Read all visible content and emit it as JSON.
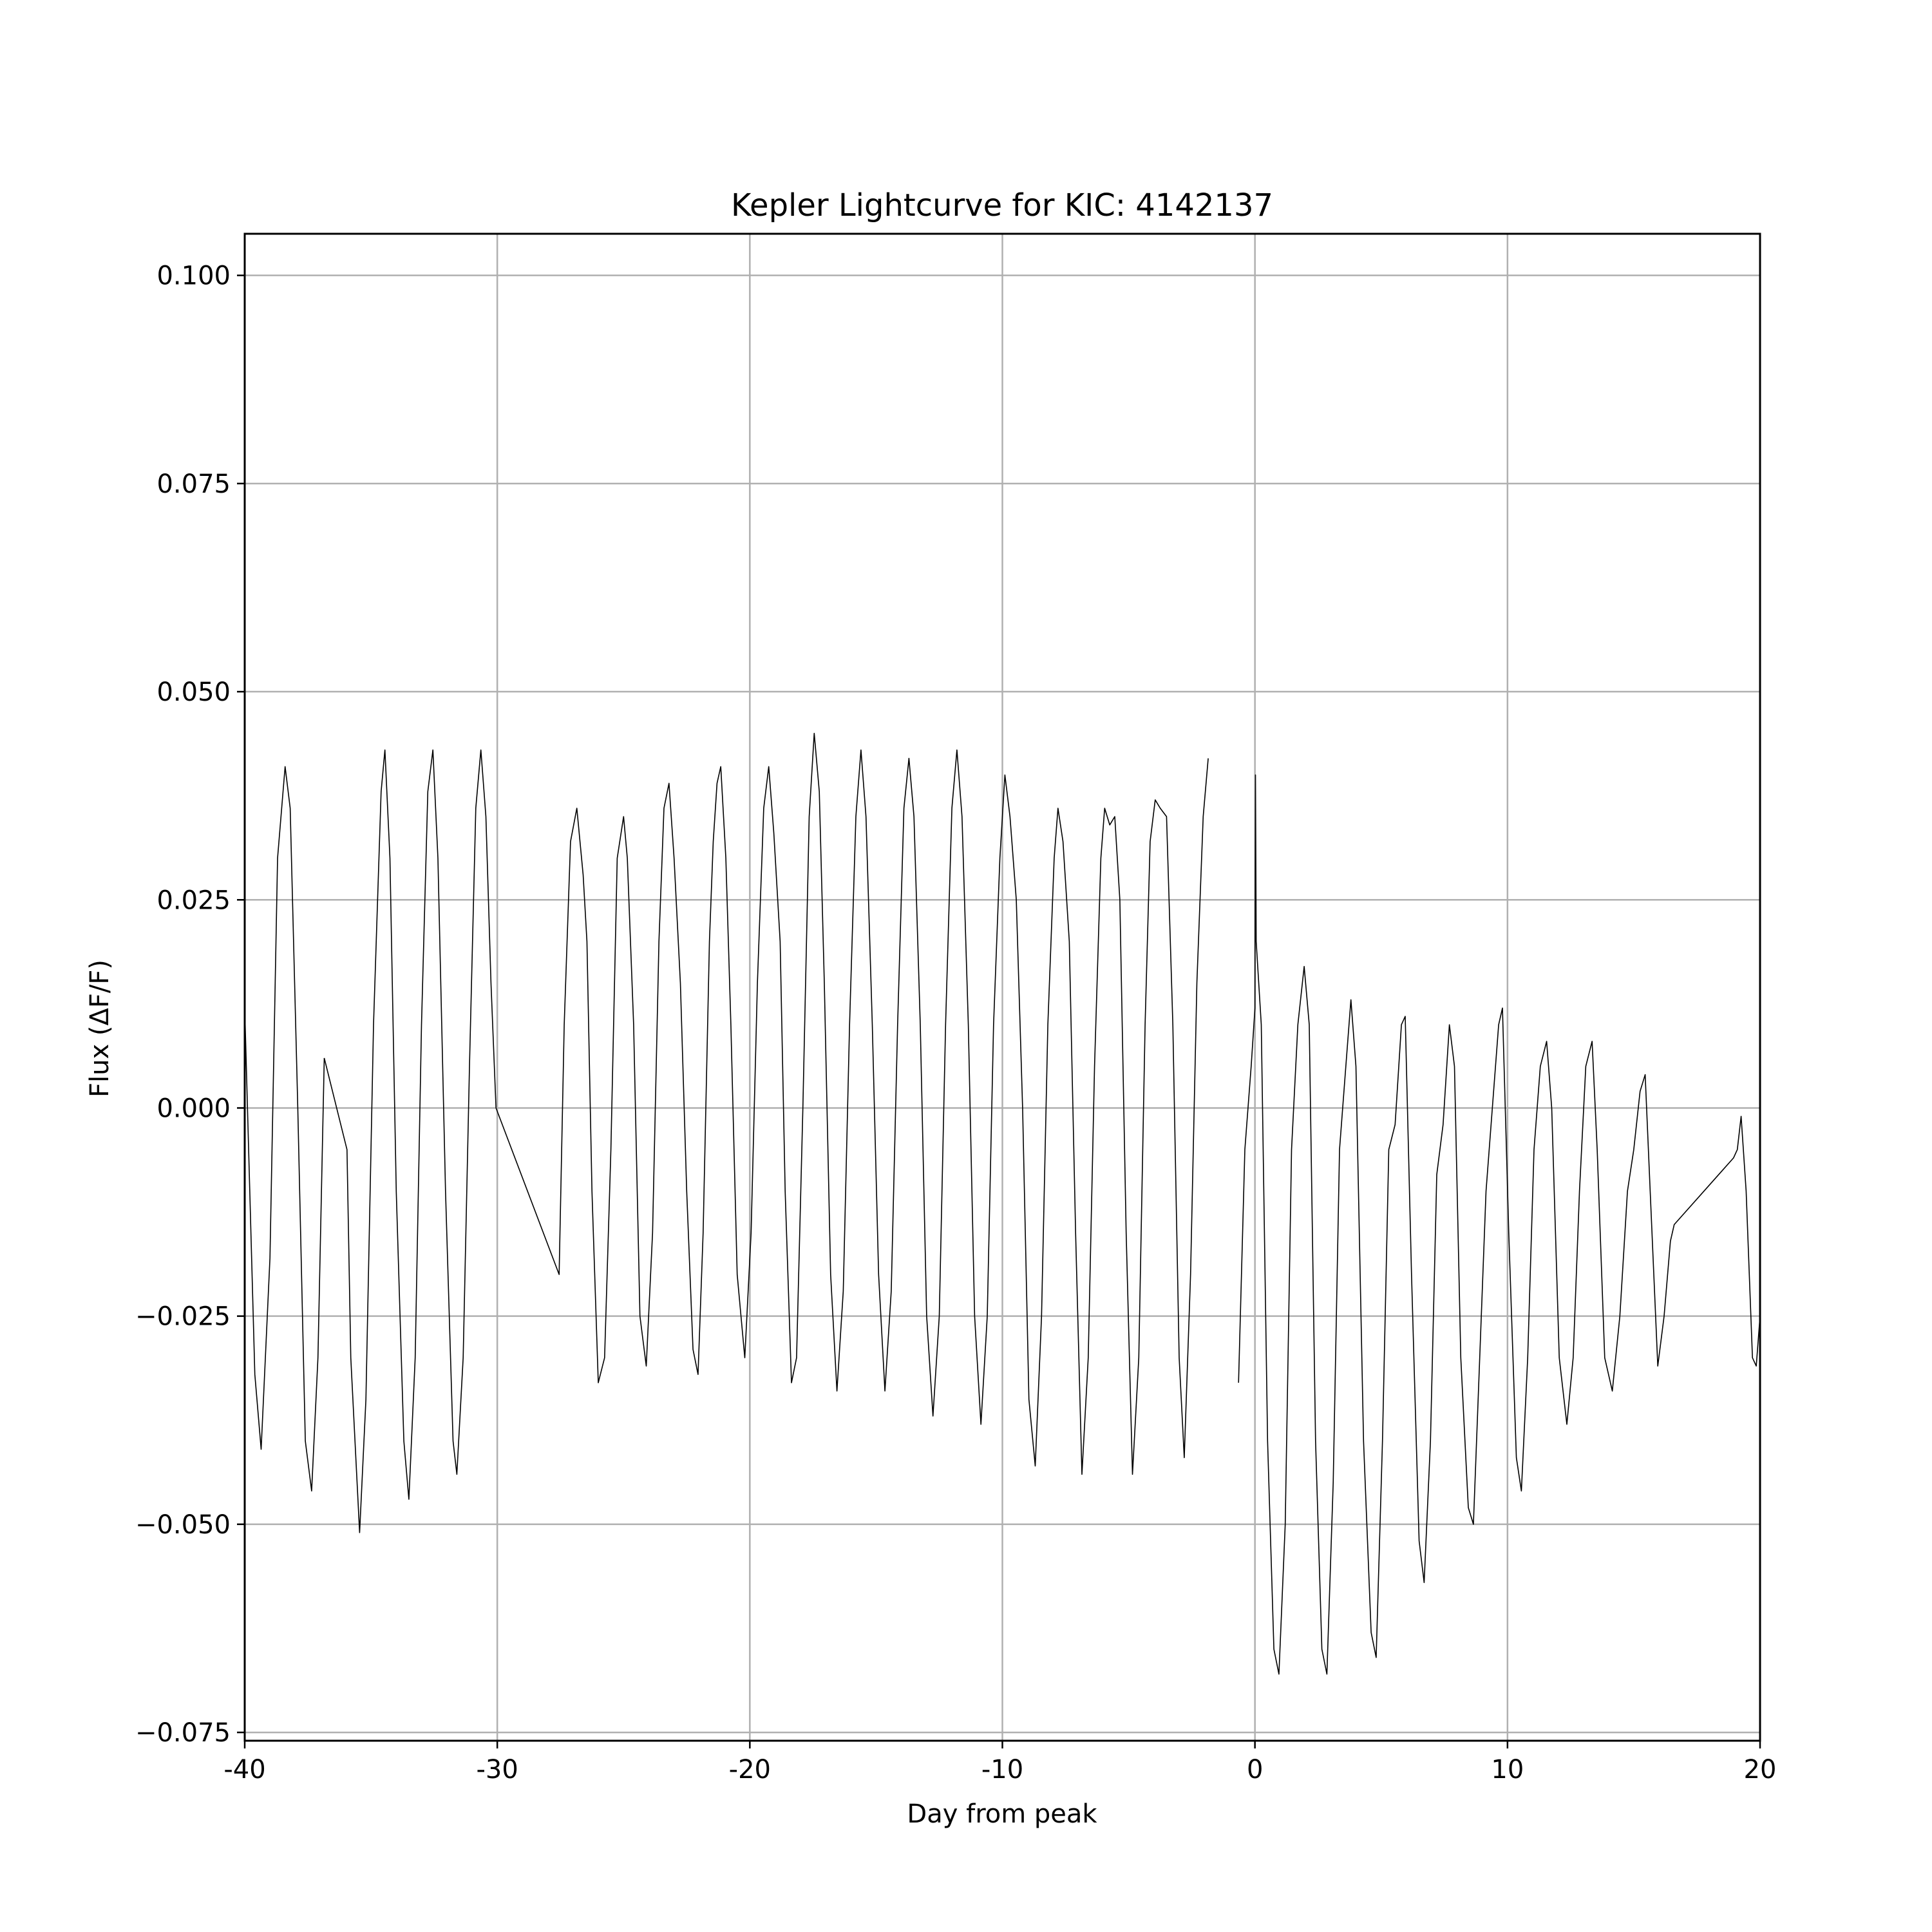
{
  "chart_data": {
    "type": "line",
    "title": "Kepler Lightcurve for KIC: 4142137",
    "xlabel": "Day from peak",
    "ylabel": "Flux (ΔF/F)",
    "xlim": [
      -40,
      20
    ],
    "ylim": [
      -0.076,
      0.105
    ],
    "grid": true,
    "x_ticks": [
      -40,
      -30,
      -20,
      -10,
      0,
      10,
      20
    ],
    "x_tick_labels": [
      "-40",
      "-30",
      "-20",
      "-10",
      "0",
      "10",
      "20"
    ],
    "y_ticks": [
      -0.075,
      -0.05,
      -0.025,
      0.0,
      0.025,
      0.05,
      0.075,
      0.1
    ],
    "y_tick_labels": [
      "−0.075",
      "−0.050",
      "−0.025",
      "0.000",
      "0.025",
      "0.050",
      "0.075",
      "0.100"
    ],
    "line_color": "#000000",
    "grid_color": "#b0b0b0",
    "series": [
      {
        "segments": [
          [
            [
              -40.0,
              0.012
            ],
            [
              -39.6,
              -0.032
            ],
            [
              -39.35,
              -0.041
            ],
            [
              -39.0,
              -0.018
            ],
            [
              -38.7,
              0.03
            ],
            [
              -38.4,
              0.041
            ],
            [
              -38.2,
              0.036
            ],
            [
              -37.9,
              0.0
            ],
            [
              -37.6,
              -0.04
            ],
            [
              -37.35,
              -0.046
            ],
            [
              -37.1,
              -0.03
            ],
            [
              -36.85,
              0.006
            ]
          ],
          [
            [
              -36.85,
              0.006
            ],
            [
              -35.95,
              -0.005
            ],
            [
              -35.8,
              -0.03
            ],
            [
              -35.45,
              -0.051
            ],
            [
              -35.2,
              -0.035
            ],
            [
              -34.9,
              0.01
            ],
            [
              -34.6,
              0.038
            ],
            [
              -34.45,
              0.043
            ],
            [
              -34.25,
              0.03
            ],
            [
              -34.0,
              -0.01
            ],
            [
              -33.7,
              -0.04
            ],
            [
              -33.5,
              -0.047
            ],
            [
              -33.25,
              -0.03
            ],
            [
              -33.0,
              0.01
            ],
            [
              -32.75,
              0.038
            ],
            [
              -32.55,
              0.043
            ],
            [
              -32.35,
              0.03
            ],
            [
              -32.05,
              -0.01
            ],
            [
              -31.75,
              -0.04
            ],
            [
              -31.6,
              -0.044
            ],
            [
              -31.35,
              -0.03
            ],
            [
              -31.1,
              0.005
            ],
            [
              -30.85,
              0.036
            ],
            [
              -30.65,
              0.043
            ],
            [
              -30.45,
              0.035
            ],
            [
              -30.25,
              0.015
            ],
            [
              -30.05,
              0.0
            ]
          ],
          [
            [
              -30.05,
              0.0
            ],
            [
              -27.55,
              -0.02
            ],
            [
              -27.35,
              0.01
            ],
            [
              -27.1,
              0.032
            ],
            [
              -26.85,
              0.036
            ],
            [
              -26.6,
              0.028
            ],
            [
              -26.45,
              0.02
            ],
            [
              -26.25,
              -0.01
            ],
            [
              -26.0,
              -0.033
            ],
            [
              -25.75,
              -0.03
            ],
            [
              -25.5,
              -0.005
            ],
            [
              -25.25,
              0.03
            ],
            [
              -25.0,
              0.035
            ],
            [
              -24.85,
              0.03
            ],
            [
              -24.6,
              0.01
            ],
            [
              -24.35,
              -0.025
            ],
            [
              -24.1,
              -0.031
            ],
            [
              -23.85,
              -0.015
            ],
            [
              -23.6,
              0.02
            ],
            [
              -23.4,
              0.036
            ],
            [
              -23.2,
              0.039
            ],
            [
              -23.0,
              0.03
            ],
            [
              -22.75,
              0.015
            ],
            [
              -22.5,
              -0.01
            ],
            [
              -22.25,
              -0.029
            ],
            [
              -22.05,
              -0.032
            ],
            [
              -21.85,
              -0.015
            ],
            [
              -21.6,
              0.02
            ],
            [
              -21.45,
              0.032
            ],
            [
              -21.3,
              0.039
            ],
            [
              -21.15,
              0.041
            ],
            [
              -20.95,
              0.03
            ],
            [
              -20.75,
              0.01
            ],
            [
              -20.5,
              -0.02
            ],
            [
              -20.2,
              -0.03
            ],
            [
              -19.95,
              -0.015
            ],
            [
              -19.7,
              0.015
            ],
            [
              -19.45,
              0.036
            ],
            [
              -19.25,
              0.041
            ],
            [
              -19.05,
              0.033
            ],
            [
              -18.8,
              0.02
            ],
            [
              -18.6,
              -0.01
            ],
            [
              -18.35,
              -0.033
            ],
            [
              -18.15,
              -0.03
            ],
            [
              -17.9,
              0.0
            ],
            [
              -17.65,
              0.035
            ],
            [
              -17.45,
              0.045
            ],
            [
              -17.25,
              0.038
            ],
            [
              -17.05,
              0.015
            ],
            [
              -16.8,
              -0.02
            ],
            [
              -16.55,
              -0.034
            ],
            [
              -16.3,
              -0.022
            ],
            [
              -16.05,
              0.01
            ],
            [
              -15.8,
              0.035
            ],
            [
              -15.6,
              0.043
            ],
            [
              -15.4,
              0.035
            ],
            [
              -15.15,
              0.01
            ],
            [
              -14.9,
              -0.02
            ],
            [
              -14.65,
              -0.034
            ],
            [
              -14.4,
              -0.022
            ],
            [
              -14.15,
              0.01
            ],
            [
              -13.9,
              0.036
            ],
            [
              -13.7,
              0.042
            ],
            [
              -13.5,
              0.035
            ],
            [
              -13.25,
              0.01
            ],
            [
              -13.0,
              -0.025
            ],
            [
              -12.75,
              -0.037
            ],
            [
              -12.5,
              -0.025
            ],
            [
              -12.25,
              0.01
            ],
            [
              -12.0,
              0.036
            ],
            [
              -11.8,
              0.043
            ],
            [
              -11.6,
              0.035
            ],
            [
              -11.35,
              0.01
            ],
            [
              -11.1,
              -0.025
            ],
            [
              -10.85,
              -0.038
            ],
            [
              -10.6,
              -0.025
            ],
            [
              -10.35,
              0.01
            ],
            [
              -10.1,
              0.03
            ],
            [
              -9.9,
              0.04
            ],
            [
              -9.7,
              0.035
            ],
            [
              -9.45,
              0.025
            ],
            [
              -9.2,
              0.0
            ],
            [
              -8.95,
              -0.035
            ],
            [
              -8.7,
              -0.043
            ],
            [
              -8.45,
              -0.025
            ],
            [
              -8.2,
              0.01
            ],
            [
              -7.95,
              0.03
            ],
            [
              -7.8,
              0.036
            ],
            [
              -7.6,
              0.032
            ],
            [
              -7.35,
              0.02
            ],
            [
              -7.1,
              -0.015
            ],
            [
              -6.85,
              -0.044
            ],
            [
              -6.6,
              -0.03
            ],
            [
              -6.35,
              0.005
            ],
            [
              -6.1,
              0.03
            ],
            [
              -5.95,
              0.036
            ],
            [
              -5.75,
              0.034
            ],
            [
              -5.55,
              0.035
            ],
            [
              -5.35,
              0.025
            ],
            [
              -5.1,
              -0.015
            ],
            [
              -4.85,
              -0.044
            ],
            [
              -4.6,
              -0.03
            ],
            [
              -4.35,
              0.01
            ],
            [
              -4.15,
              0.032
            ],
            [
              -3.95,
              0.037
            ],
            [
              -3.75,
              0.036
            ],
            [
              -3.5,
              0.035
            ],
            [
              -3.25,
              0.01
            ],
            [
              -3.0,
              -0.03
            ],
            [
              -2.8,
              -0.042
            ],
            [
              -2.55,
              -0.02
            ],
            [
              -2.3,
              0.015
            ],
            [
              -2.05,
              0.035
            ],
            [
              -1.85,
              0.042
            ]
          ],
          [
            [
              -0.65,
              -0.033
            ],
            [
              -0.4,
              -0.005
            ],
            [
              -0.15,
              0.005
            ],
            [
              0.0,
              0.012
            ],
            [
              0.02,
              0.04
            ],
            [
              0.05,
              0.02
            ],
            [
              0.25,
              0.01
            ],
            [
              0.5,
              -0.04
            ],
            [
              0.75,
              -0.065
            ],
            [
              0.95,
              -0.068
            ],
            [
              1.2,
              -0.05
            ],
            [
              1.45,
              -0.005
            ],
            [
              1.7,
              0.01
            ],
            [
              1.95,
              0.017
            ],
            [
              2.15,
              0.01
            ],
            [
              2.4,
              -0.04
            ],
            [
              2.65,
              -0.065
            ],
            [
              2.85,
              -0.068
            ],
            [
              3.1,
              -0.045
            ],
            [
              3.35,
              -0.005
            ],
            [
              3.6,
              0.005
            ],
            [
              3.8,
              0.013
            ],
            [
              4.0,
              0.005
            ],
            [
              4.3,
              -0.04
            ],
            [
              4.6,
              -0.063
            ],
            [
              4.8,
              -0.066
            ],
            [
              5.05,
              -0.04
            ],
            [
              5.3,
              -0.005
            ],
            [
              5.55,
              -0.002
            ],
            [
              5.8,
              0.01
            ],
            [
              5.95,
              0.011
            ],
            [
              6.2,
              -0.02
            ],
            [
              6.5,
              -0.052
            ],
            [
              6.7,
              -0.057
            ],
            [
              6.95,
              -0.04
            ],
            [
              7.2,
              -0.008
            ],
            [
              7.45,
              -0.002
            ],
            [
              7.7,
              0.01
            ],
            [
              7.9,
              0.005
            ],
            [
              8.15,
              -0.03
            ],
            [
              8.45,
              -0.048
            ],
            [
              8.65,
              -0.05
            ],
            [
              8.9,
              -0.03
            ],
            [
              9.15,
              -0.01
            ],
            [
              9.4,
              0.0
            ],
            [
              9.65,
              0.01
            ],
            [
              9.8,
              0.012
            ],
            [
              10.05,
              -0.015
            ],
            [
              10.35,
              -0.042
            ],
            [
              10.55,
              -0.046
            ],
            [
              10.8,
              -0.03
            ],
            [
              11.05,
              -0.005
            ],
            [
              11.3,
              0.005
            ],
            [
              11.55,
              0.008
            ],
            [
              11.75,
              0.0
            ],
            [
              12.05,
              -0.03
            ],
            [
              12.35,
              -0.038
            ],
            [
              12.6,
              -0.03
            ],
            [
              12.85,
              -0.01
            ],
            [
              13.1,
              0.005
            ],
            [
              13.35,
              0.008
            ],
            [
              13.55,
              -0.005
            ],
            [
              13.85,
              -0.03
            ],
            [
              14.15,
              -0.034
            ],
            [
              14.45,
              -0.025
            ],
            [
              14.75,
              -0.01
            ],
            [
              15.0,
              -0.005
            ],
            [
              15.25,
              0.002
            ],
            [
              15.45,
              0.004
            ],
            [
              15.65,
              -0.01
            ],
            [
              15.95,
              -0.031
            ],
            [
              16.2,
              -0.025
            ],
            [
              16.45,
              -0.016
            ],
            [
              16.6,
              -0.014
            ],
            [
              18.95,
              -0.006
            ],
            [
              19.1,
              -0.005
            ],
            [
              19.25,
              -0.001
            ],
            [
              19.45,
              -0.01
            ],
            [
              19.7,
              -0.03
            ],
            [
              19.85,
              -0.031
            ],
            [
              20.0,
              -0.025
            ]
          ]
        ]
      }
    ]
  }
}
